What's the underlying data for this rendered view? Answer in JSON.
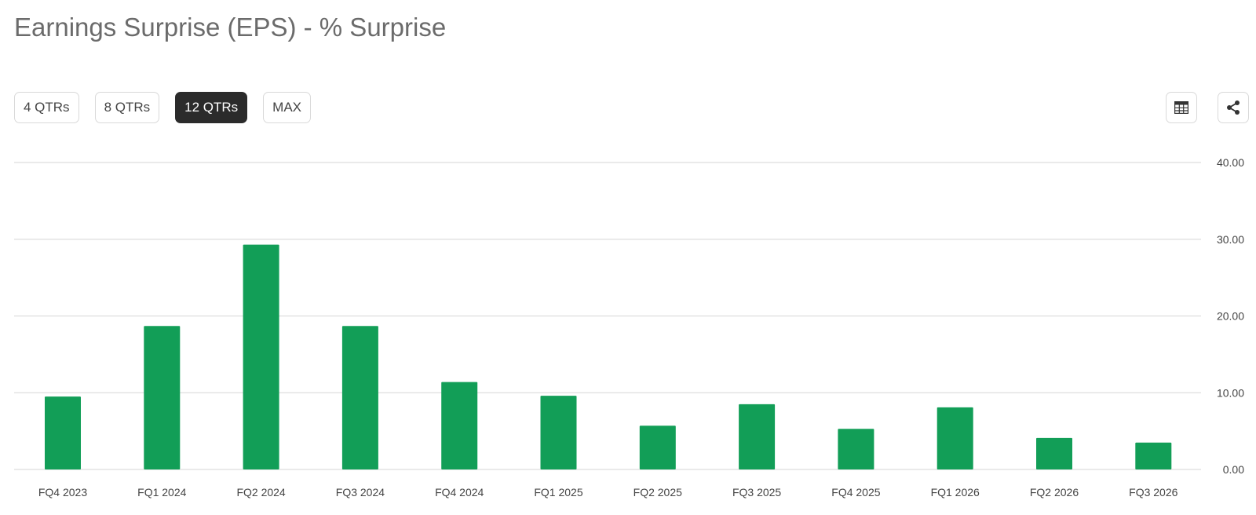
{
  "title": "Earnings Surprise (EPS) - % Surprise",
  "range_buttons": [
    {
      "label": "4 QTRs",
      "active": false
    },
    {
      "label": "8 QTRs",
      "active": false
    },
    {
      "label": "12 QTRs",
      "active": true
    },
    {
      "label": "MAX",
      "active": false
    }
  ],
  "tools": {
    "table_icon": "table-icon",
    "share_icon": "share-icon"
  },
  "colors": {
    "bar": "#129e57",
    "grid": "#d6d6d6",
    "axis_text": "#444444",
    "active_button": "#2b2b2b"
  },
  "chart_data": {
    "type": "bar",
    "categories": [
      "FQ4 2023",
      "FQ1 2024",
      "FQ2 2024",
      "FQ3 2024",
      "FQ4 2024",
      "FQ1 2025",
      "FQ2 2025",
      "FQ3 2025",
      "FQ4 2025",
      "FQ1 2026",
      "FQ2 2026",
      "FQ3 2026"
    ],
    "values": [
      9.5,
      18.7,
      29.3,
      18.7,
      11.4,
      9.6,
      5.7,
      8.5,
      5.3,
      8.1,
      4.1,
      3.5
    ],
    "title": "Earnings Surprise (EPS) - % Surprise",
    "ylim": [
      0,
      40
    ],
    "yticks": [
      "0.00",
      "10.00",
      "20.00",
      "30.00",
      "40.00"
    ],
    "ytick_values": [
      0,
      10,
      20,
      30,
      40
    ],
    "grid": true,
    "y_axis_side": "right",
    "legend": "none"
  }
}
